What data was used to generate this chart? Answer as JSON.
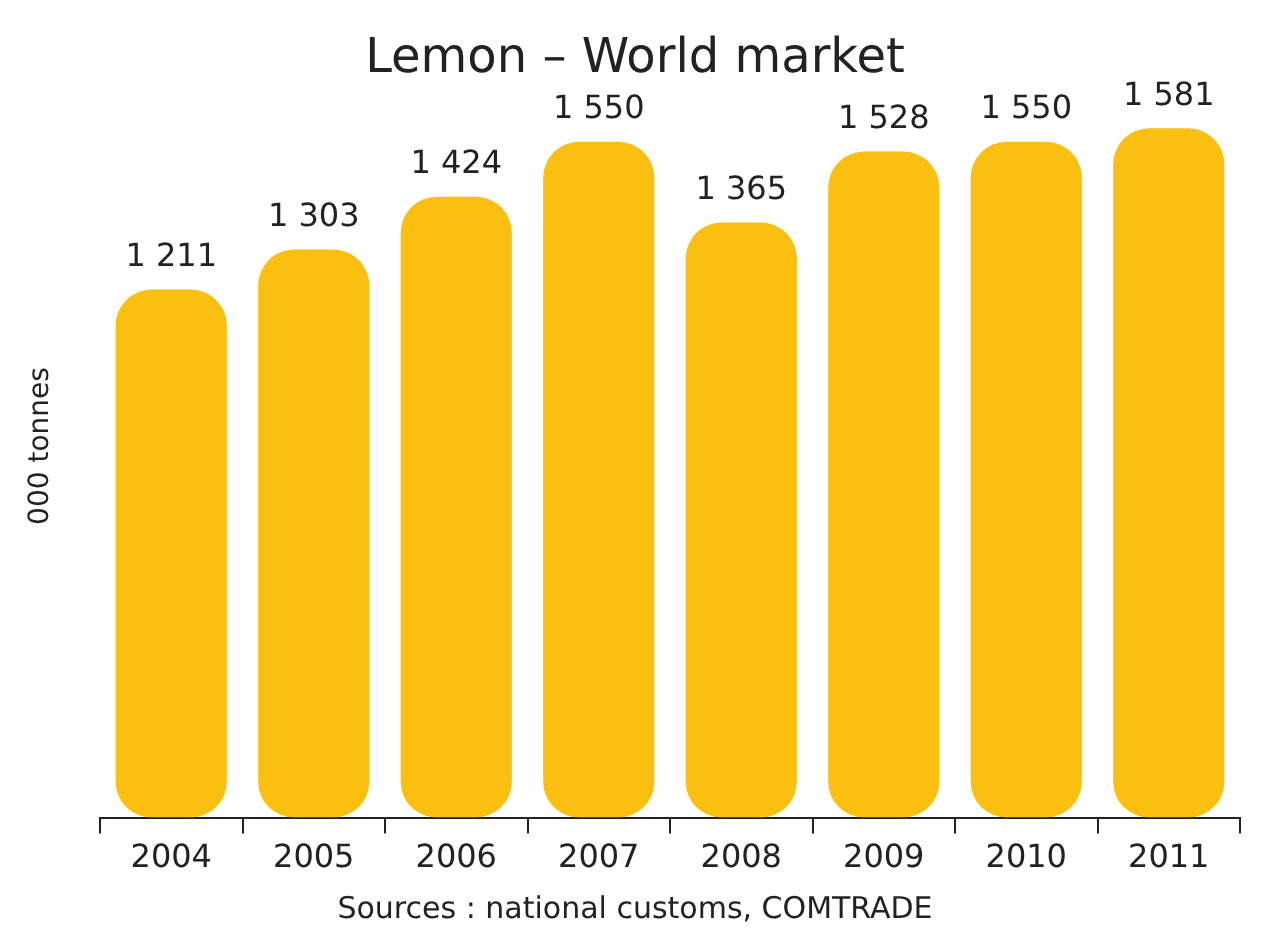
{
  "chart_data": {
    "type": "bar",
    "title": "Lemon – World market",
    "ylabel": "000 tonnes",
    "categories": [
      "2004",
      "2005",
      "2006",
      "2007",
      "2008",
      "2009",
      "2010",
      "2011"
    ],
    "values": [
      1211,
      1303,
      1424,
      1550,
      1365,
      1528,
      1550,
      1581
    ],
    "value_labels": [
      "1 211",
      "1 303",
      "1 424",
      "1 550",
      "1 365",
      "1 528",
      "1 550",
      "1 581"
    ],
    "color": "#fbbf0f",
    "grid": false,
    "legend": false,
    "annotations": [
      "Sources : national customs, COMTRADE"
    ]
  }
}
